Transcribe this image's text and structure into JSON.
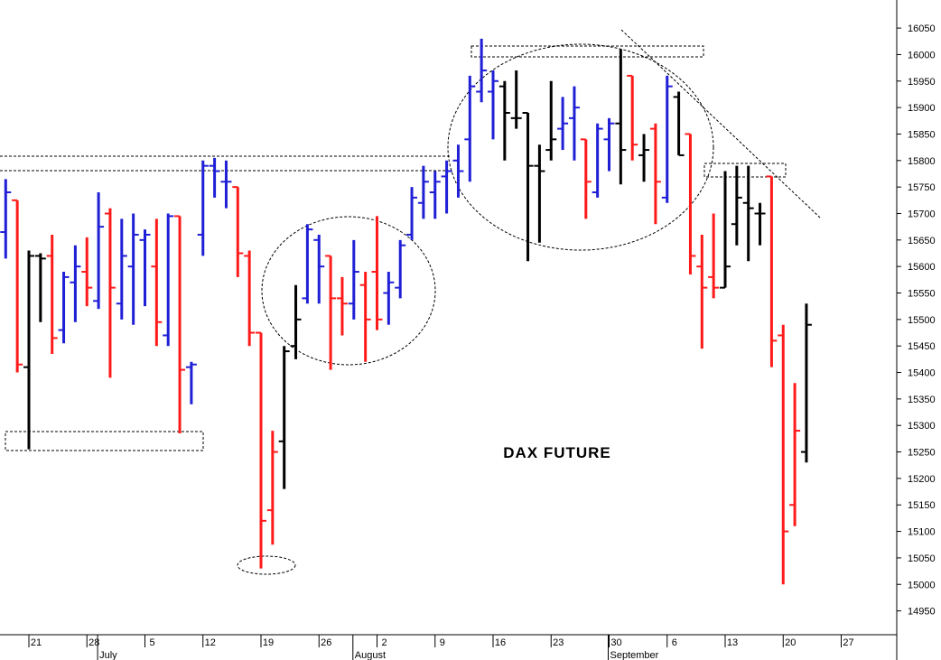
{
  "chart_data": {
    "type": "ohlc",
    "title": "DAX FUTURE",
    "categories": [
      null,
      null,
      "21",
      null,
      null,
      null,
      null,
      "28",
      null,
      null,
      null,
      null,
      "5",
      null,
      null,
      null,
      null,
      "12",
      null,
      null,
      null,
      null,
      "19",
      null,
      null,
      null,
      null,
      "26",
      null,
      null,
      null,
      null,
      "2",
      null,
      null,
      null,
      null,
      "9",
      null,
      null,
      null,
      null,
      "16",
      null,
      null,
      null,
      null,
      "23",
      null,
      null,
      null,
      null,
      "30",
      null,
      null,
      null,
      null,
      "6",
      null,
      null,
      null,
      null,
      "13",
      null,
      null,
      null,
      null,
      "20",
      null,
      null,
      null,
      null,
      "27",
      null,
      null,
      null,
      null
    ],
    "open": [
      15665,
      15725,
      15410,
      15620,
      15620,
      15480,
      15570,
      15590,
      15535,
      15700,
      15530,
      15600,
      15650,
      15600,
      15470,
      15695,
      15410,
      15660,
      15790,
      15760,
      15750,
      15620,
      15475,
      15140,
      15270,
      15450,
      15540,
      15650,
      15620,
      15540,
      15530,
      15565,
      15590,
      15550,
      15560,
      15660,
      15720,
      15740,
      15770,
      15800,
      15840,
      15930,
      15930,
      15940,
      15880,
      15890,
      15790,
      15820,
      15860,
      15880,
      15840,
      15740,
      15840,
      15870,
      15960,
      15810,
      15860,
      15730,
      15920,
      15850,
      15600,
      15580,
      15560,
      15680,
      15720,
      15700,
      15770,
      15470,
      15150,
      15250,
      null,
      null,
      null,
      null,
      null,
      null,
      null
    ],
    "high": [
      15765,
      15725,
      15630,
      15625,
      15660,
      15590,
      15640,
      15655,
      15740,
      15710,
      15690,
      15700,
      15670,
      15690,
      15700,
      15695,
      15420,
      15800,
      15805,
      15800,
      15750,
      15630,
      15475,
      15290,
      15450,
      15565,
      15680,
      15660,
      15620,
      15580,
      15650,
      15590,
      15695,
      15590,
      15650,
      15750,
      15790,
      15780,
      15800,
      15830,
      15960,
      16030,
      15970,
      15950,
      15970,
      15890,
      15830,
      15950,
      15920,
      15940,
      15840,
      15870,
      15880,
      16010,
      15960,
      15850,
      15870,
      15960,
      15930,
      15850,
      15660,
      15700,
      15780,
      15790,
      15790,
      15720,
      15770,
      15490,
      15380,
      15530,
      null,
      null,
      null,
      null,
      null,
      null,
      null
    ],
    "low": [
      15615,
      15400,
      15255,
      15495,
      15435,
      15455,
      15495,
      15525,
      15520,
      15390,
      15500,
      15490,
      15525,
      15450,
      15450,
      15285,
      15340,
      15620,
      15730,
      15710,
      15580,
      15450,
      15030,
      15075,
      15180,
      15425,
      15530,
      15530,
      15405,
      15470,
      15500,
      15420,
      15480,
      15490,
      15540,
      15650,
      15690,
      15690,
      15700,
      15730,
      15760,
      15910,
      15840,
      15800,
      15860,
      15610,
      15645,
      15800,
      15820,
      15800,
      15690,
      15730,
      15780,
      15755,
      15800,
      15760,
      15680,
      15720,
      15810,
      15585,
      15445,
      15540,
      15560,
      15640,
      15610,
      15640,
      15410,
      15000,
      15110,
      15230,
      null,
      null,
      null,
      null,
      null,
      null,
      null
    ],
    "close": [
      15740,
      15415,
      15620,
      15615,
      15465,
      15580,
      15600,
      15560,
      15675,
      15560,
      15620,
      15660,
      15660,
      15495,
      15695,
      15405,
      15415,
      15790,
      15780,
      15760,
      15625,
      15475,
      15120,
      15250,
      15440,
      15500,
      15670,
      15600,
      15540,
      15530,
      15590,
      15500,
      15500,
      15570,
      15640,
      15730,
      15760,
      15760,
      15780,
      15780,
      15940,
      15970,
      15950,
      15890,
      15880,
      15790,
      15780,
      15840,
      15870,
      15900,
      15760,
      15860,
      15870,
      15820,
      15830,
      15820,
      15760,
      15940,
      15810,
      15620,
      15560,
      15560,
      15600,
      15730,
      15710,
      15700,
      15460,
      15100,
      15290,
      15490,
      null,
      null,
      null,
      null,
      null,
      null,
      null
    ],
    "bar_colors": [
      "#1f1fd6",
      "#ff1a1a",
      "#000000",
      "#000000",
      "#ff1a1a",
      "#1f1fd6",
      "#1f1fd6",
      "#ff1a1a",
      "#1f1fd6",
      "#ff1a1a",
      "#1f1fd6",
      "#1f1fd6",
      "#1f1fd6",
      "#ff1a1a",
      "#1f1fd6",
      "#ff1a1a",
      "#1f1fd6",
      "#1f1fd6",
      "#1f1fd6",
      "#1f1fd6",
      "#ff1a1a",
      "#ff1a1a",
      "#ff1a1a",
      "#ff1a1a",
      "#000000",
      "#000000",
      "#1f1fd6",
      "#1f1fd6",
      "#ff1a1a",
      "#ff1a1a",
      "#1f1fd6",
      "#ff1a1a",
      "#ff1a1a",
      "#1f1fd6",
      "#1f1fd6",
      "#1f1fd6",
      "#1f1fd6",
      "#1f1fd6",
      "#1f1fd6",
      "#1f1fd6",
      "#1f1fd6",
      "#1f1fd6",
      "#1f1fd6",
      "#000000",
      "#000000",
      "#000000",
      "#000000",
      "#000000",
      "#1f1fd6",
      "#1f1fd6",
      "#ff1a1a",
      "#1f1fd6",
      "#1f1fd6",
      "#000000",
      "#ff1a1a",
      "#000000",
      "#ff1a1a",
      "#1f1fd6",
      "#000000",
      "#ff1a1a",
      "#ff1a1a",
      "#ff1a1a",
      "#000000",
      "#000000",
      "#000000",
      "#000000",
      "#ff1a1a",
      "#ff1a1a",
      "#ff1a1a",
      "#000000"
    ],
    "month_labels": [
      "July",
      "August",
      "September"
    ],
    "ylim": [
      14905,
      16103
    ],
    "yticks": [
      14950,
      15000,
      15050,
      15100,
      15150,
      15200,
      15250,
      15300,
      15350,
      15400,
      15450,
      15500,
      15550,
      15600,
      15650,
      15700,
      15750,
      15800,
      15850,
      15900,
      15950,
      16000,
      16050
    ],
    "grid": false
  }
}
